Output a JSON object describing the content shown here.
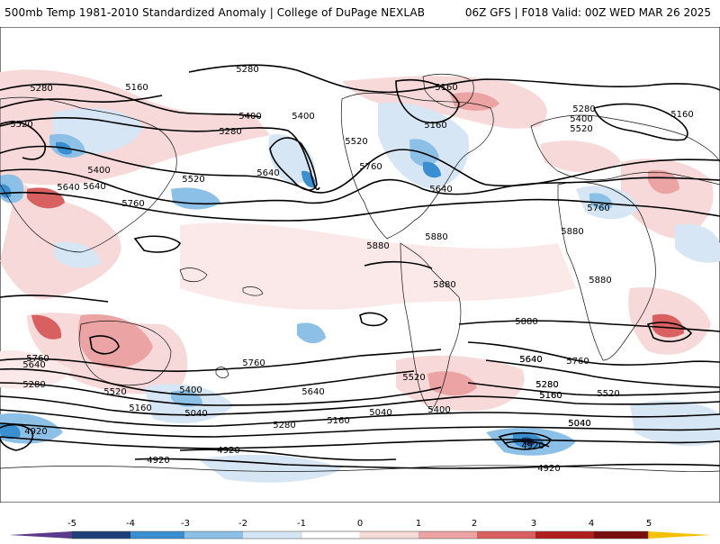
{
  "header": {
    "title": "500mb Temp 1981-2010 Standardized Anomaly | College of DuPage NEXLAB",
    "run_info": "06Z GFS | F018 Valid: 00Z WED MAR 26 2025"
  },
  "map": {
    "contour_labels": [
      "5280",
      "5160",
      "5520",
      "5400",
      "5640",
      "5760",
      "5280",
      "5400",
      "5280",
      "5640",
      "5520",
      "5400",
      "5520",
      "5760",
      "5640",
      "5160",
      "5160",
      "5280",
      "5400",
      "5520",
      "5160",
      "5880",
      "5880",
      "5640",
      "5760",
      "5880",
      "5880",
      "5880",
      "5760",
      "5640",
      "5520",
      "5400",
      "5280",
      "5160",
      "5040",
      "4920",
      "5640",
      "5760",
      "5640",
      "5520",
      "5280",
      "5160",
      "5400",
      "5040",
      "5280",
      "5160",
      "5040",
      "4920",
      "4920",
      "5760",
      "5640",
      "5280",
      "5160",
      "5520",
      "5040",
      "4920",
      "4920",
      "5880"
    ],
    "colors": {
      "neg5": "#5b3a8c",
      "neg4": "#1f3f7a",
      "neg3": "#3a8fd0",
      "neg2": "#8cc0e6",
      "neg1": "#d6e6f4",
      "zero": "#ffffff",
      "pos1": "#f7d9d9",
      "pos2": "#eba3a3",
      "pos3": "#d86060",
      "pos4": "#b01e1e",
      "pos5": "#f5c000"
    }
  },
  "colorbar": {
    "ticks": [
      "-5",
      "-4",
      "-3",
      "-2",
      "-1",
      "0",
      "1",
      "2",
      "3",
      "4",
      "5"
    ]
  }
}
